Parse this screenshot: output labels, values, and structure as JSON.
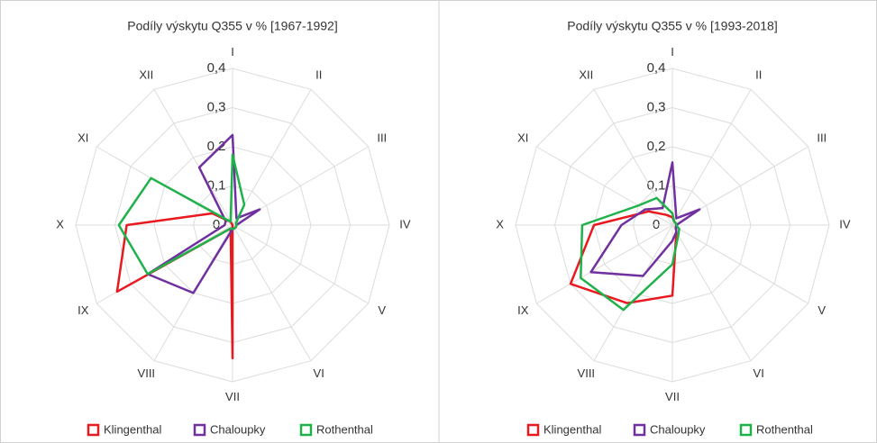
{
  "chart_data": [
    {
      "type": "radar",
      "title": "Podíly výskytu Q355 v % [1967-1992]",
      "categories": [
        "I",
        "II",
        "III",
        "IV",
        "V",
        "VI",
        "VII",
        "VIII",
        "IX",
        "X",
        "XI",
        "XII"
      ],
      "ylim": [
        0,
        0.4
      ],
      "yticks": [
        0,
        {
          "value": 0.1,
          "label": "0,1"
        },
        {
          "value": 0.2,
          "label": "0,2"
        },
        {
          "value": 0.3,
          "label": "0,3"
        },
        {
          "value": 0.4,
          "label": "0,4"
        }
      ],
      "grid": true,
      "series": [
        {
          "name": "Klingenthal",
          "color": "#e8191f",
          "values": [
            0,
            0,
            0,
            0,
            0,
            0,
            0.34,
            0.01,
            0.34,
            0.27,
            0.06,
            0.01
          ]
        },
        {
          "name": "Chaloupky",
          "color": "#7030a0",
          "values": [
            0.23,
            0.02,
            0.08,
            0.01,
            0.01,
            0.01,
            0.01,
            0.2,
            0.25,
            0.02,
            0.02,
            0.17
          ]
        },
        {
          "name": "Rothenthal",
          "color": "#1fb24a",
          "values": [
            0.18,
            0.06,
            0.01,
            0.01,
            0.01,
            0.01,
            0.01,
            0.01,
            0.25,
            0.29,
            0.24,
            0.01
          ]
        }
      ]
    },
    {
      "type": "radar",
      "title": "Podíly výskytu Q355 v % [1993-2018]",
      "categories": [
        "I",
        "II",
        "III",
        "IV",
        "V",
        "VI",
        "VII",
        "VIII",
        "IX",
        "X",
        "XI",
        "XII"
      ],
      "ylim": [
        0,
        0.4
      ],
      "yticks": [
        0,
        {
          "value": 0.1,
          "label": "0,1"
        },
        {
          "value": 0.2,
          "label": "0,2"
        },
        {
          "value": 0.3,
          "label": "0,3"
        },
        {
          "value": 0.4,
          "label": "0,4"
        }
      ],
      "grid": true,
      "series": [
        {
          "name": "Klingenthal",
          "color": "#e8191f",
          "values": [
            0.02,
            0.01,
            0.01,
            0.01,
            0.01,
            0.02,
            0.18,
            0.23,
            0.3,
            0.2,
            0.07,
            0.03
          ]
        },
        {
          "name": "Chaloupky",
          "color": "#7030a0",
          "values": [
            0.16,
            0.02,
            0.08,
            0.01,
            0.01,
            0.02,
            0.04,
            0.15,
            0.24,
            0.13,
            0.08,
            0.05
          ]
        },
        {
          "name": "Rothenthal",
          "color": "#1fb24a",
          "values": [
            0.03,
            0.01,
            0.01,
            0.01,
            0.02,
            0.03,
            0.1,
            0.25,
            0.27,
            0.23,
            0.1,
            0.08
          ]
        }
      ]
    }
  ]
}
